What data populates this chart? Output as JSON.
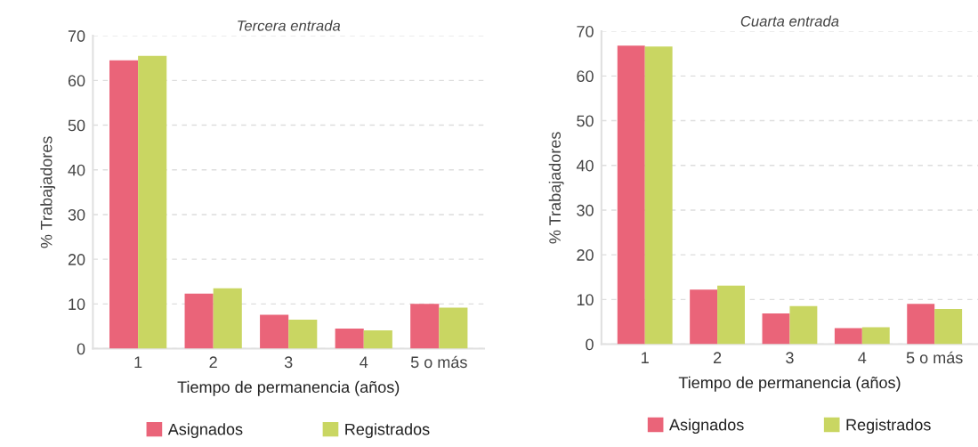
{
  "chart_data": [
    {
      "type": "bar",
      "title": "Tercera entrada",
      "xlabel": "Tiempo de permanencia (años)",
      "ylabel": "% Trabajadores",
      "categories": [
        "1",
        "2",
        "3",
        "4",
        "5 o más"
      ],
      "series": [
        {
          "name": "Asignados",
          "color": "#ea6479",
          "values": [
            64.5,
            12.3,
            7.6,
            4.5,
            10.0
          ]
        },
        {
          "name": "Registrados",
          "color": "#c9d662",
          "values": [
            65.5,
            13.5,
            6.5,
            4.1,
            9.2
          ]
        }
      ],
      "ylim": [
        0,
        70
      ],
      "yticks": [
        0,
        10,
        20,
        30,
        40,
        50,
        60,
        70
      ],
      "grid": "y",
      "legend": "bottom"
    },
    {
      "type": "bar",
      "title": "Cuarta entrada",
      "xlabel": "Tiempo de permanencia (años)",
      "ylabel": "% Trabajadores",
      "categories": [
        "1",
        "2",
        "3",
        "4",
        "5 o más"
      ],
      "series": [
        {
          "name": "Asignados",
          "color": "#ea6479",
          "values": [
            66.8,
            12.2,
            6.9,
            3.6,
            9.0
          ]
        },
        {
          "name": "Registrados",
          "color": "#c9d662",
          "values": [
            66.6,
            13.1,
            8.5,
            3.8,
            7.9
          ]
        }
      ],
      "ylim": [
        0,
        70
      ],
      "yticks": [
        0,
        10,
        20,
        30,
        40,
        50,
        60,
        70
      ],
      "grid": "y",
      "legend": "bottom"
    }
  ]
}
